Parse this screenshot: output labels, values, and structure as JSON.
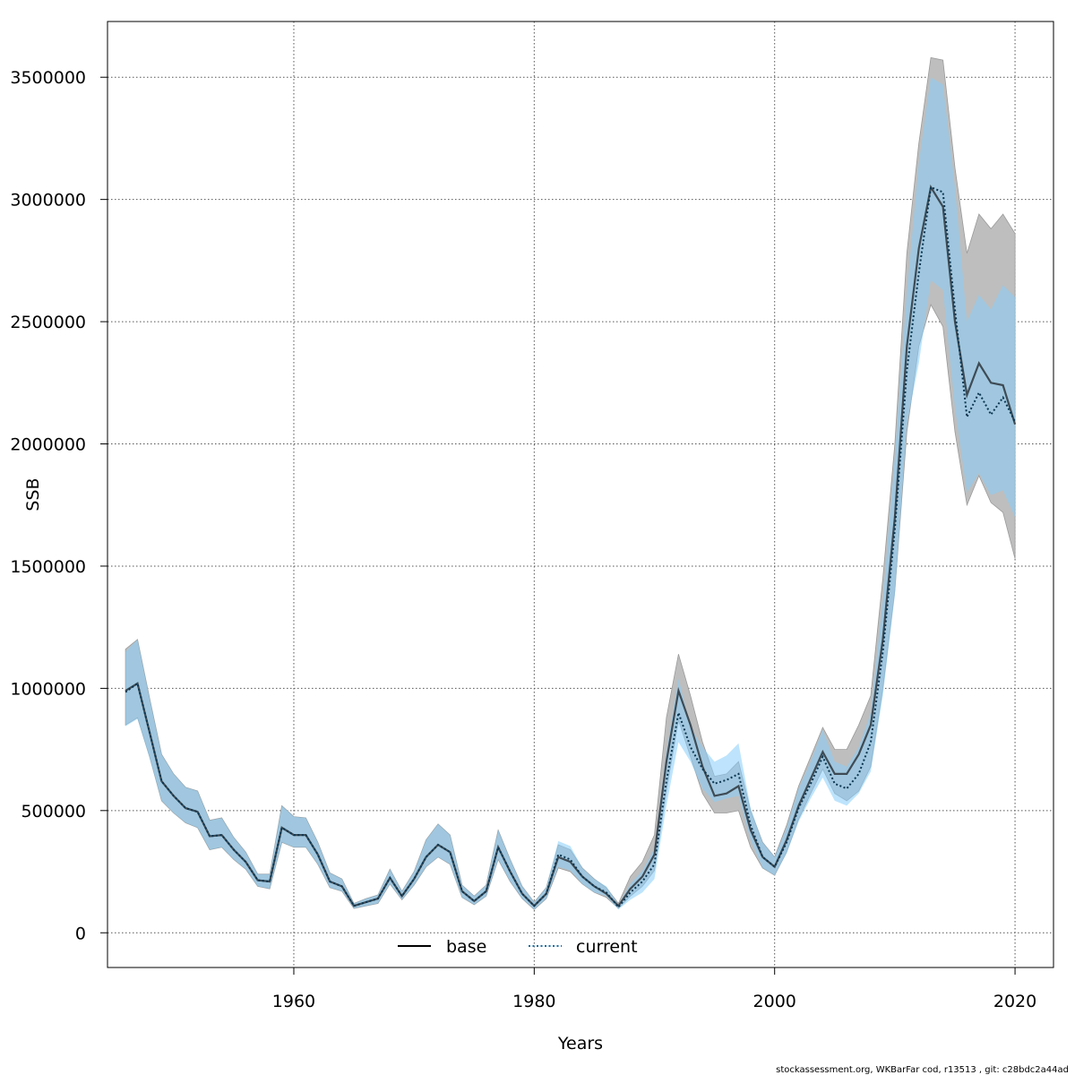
{
  "chart_data": {
    "type": "line",
    "title": "",
    "xlabel": "Years",
    "ylabel": "SSB",
    "xlim": [
      1944.5,
      2023.2
    ],
    "ylim": [
      -142000,
      3728000
    ],
    "grid": true,
    "legend_position": "bottom-center",
    "x_ticks": [
      1960,
      1980,
      2000,
      2020
    ],
    "y_ticks": [
      0,
      500000,
      1000000,
      1500000,
      2000000,
      2500000,
      3000000,
      3500000
    ],
    "colors": {
      "base_band": "#bebebe",
      "current_band": "#87cefa",
      "base_line": "#000000",
      "current_line": "#1f6f9f"
    },
    "x": [
      1946,
      1947,
      1948,
      1949,
      1950,
      1951,
      1952,
      1953,
      1954,
      1955,
      1956,
      1957,
      1958,
      1959,
      1960,
      1961,
      1962,
      1963,
      1964,
      1965,
      1966,
      1967,
      1968,
      1969,
      1970,
      1971,
      1972,
      1973,
      1974,
      1975,
      1976,
      1977,
      1978,
      1979,
      1980,
      1981,
      1982,
      1983,
      1984,
      1985,
      1986,
      1987,
      1988,
      1989,
      1990,
      1991,
      1992,
      1993,
      1994,
      1995,
      1996,
      1997,
      1998,
      1999,
      2000,
      2001,
      2002,
      2003,
      2004,
      2005,
      2006,
      2007,
      2008,
      2009,
      2010,
      2011,
      2012,
      2013,
      2014,
      2015,
      2016,
      2017,
      2018,
      2019,
      2020
    ],
    "series": [
      {
        "name": "base",
        "values": [
          990000,
          1020000,
          820000,
          620000,
          560000,
          510000,
          495000,
          395000,
          400000,
          340000,
          290000,
          215000,
          210000,
          430000,
          400000,
          400000,
          320000,
          210000,
          190000,
          110000,
          125000,
          140000,
          225000,
          150000,
          220000,
          310000,
          360000,
          330000,
          170000,
          130000,
          170000,
          350000,
          250000,
          160000,
          110000,
          160000,
          310000,
          290000,
          230000,
          190000,
          160000,
          110000,
          180000,
          230000,
          320000,
          700000,
          990000,
          850000,
          680000,
          560000,
          570000,
          600000,
          420000,
          310000,
          270000,
          380000,
          520000,
          630000,
          740000,
          650000,
          650000,
          730000,
          850000,
          1200000,
          1700000,
          2400000,
          2800000,
          3050000,
          2970000,
          2500000,
          2200000,
          2330000,
          2250000,
          2240000,
          2080000
        ],
        "lower": [
          850000,
          880000,
          720000,
          540000,
          490000,
          450000,
          430000,
          340000,
          350000,
          300000,
          260000,
          190000,
          180000,
          370000,
          350000,
          350000,
          280000,
          185000,
          170000,
          100000,
          110000,
          120000,
          200000,
          135000,
          195000,
          270000,
          310000,
          280000,
          145000,
          115000,
          150000,
          300000,
          210000,
          140000,
          95000,
          140000,
          265000,
          250000,
          200000,
          165000,
          145000,
          100000,
          150000,
          190000,
          255000,
          580000,
          870000,
          720000,
          570000,
          490000,
          490000,
          500000,
          350000,
          265000,
          235000,
          330000,
          465000,
          570000,
          670000,
          570000,
          540000,
          580000,
          680000,
          1000000,
          1400000,
          2050000,
          2400000,
          2570000,
          2480000,
          2050000,
          1750000,
          1870000,
          1760000,
          1720000,
          1530000
        ],
        "upper": [
          1160000,
          1200000,
          960000,
          730000,
          650000,
          595000,
          580000,
          460000,
          470000,
          390000,
          330000,
          240000,
          240000,
          520000,
          475000,
          470000,
          370000,
          245000,
          220000,
          120000,
          140000,
          155000,
          260000,
          170000,
          250000,
          380000,
          445000,
          400000,
          195000,
          150000,
          195000,
          420000,
          300000,
          190000,
          125000,
          185000,
          360000,
          340000,
          265000,
          220000,
          185000,
          120000,
          230000,
          290000,
          400000,
          880000,
          1140000,
          970000,
          780000,
          640000,
          650000,
          700000,
          500000,
          370000,
          310000,
          440000,
          600000,
          720000,
          840000,
          750000,
          750000,
          850000,
          970000,
          1450000,
          2000000,
          2780000,
          3230000,
          3580000,
          3570000,
          3130000,
          2780000,
          2940000,
          2880000,
          2940000,
          2860000
        ]
      },
      {
        "name": "current",
        "values": [
          985000,
          1020000,
          820000,
          620000,
          560000,
          510000,
          495000,
          395000,
          400000,
          340000,
          290000,
          215000,
          210000,
          430000,
          400000,
          400000,
          320000,
          210000,
          190000,
          110000,
          125000,
          140000,
          225000,
          150000,
          220000,
          310000,
          360000,
          330000,
          170000,
          130000,
          170000,
          350000,
          250000,
          160000,
          110000,
          160000,
          320000,
          300000,
          230000,
          190000,
          165000,
          105000,
          165000,
          210000,
          280000,
          620000,
          900000,
          760000,
          670000,
          610000,
          625000,
          650000,
          440000,
          310000,
          270000,
          370000,
          510000,
          610000,
          720000,
          610000,
          590000,
          650000,
          780000,
          1150000,
          1650000,
          2300000,
          2700000,
          3050000,
          3030000,
          2550000,
          2110000,
          2210000,
          2120000,
          2190000,
          2090000
        ],
        "lower": [
          845000,
          875000,
          715000,
          540000,
          490000,
          450000,
          430000,
          340000,
          350000,
          300000,
          260000,
          190000,
          180000,
          370000,
          350000,
          350000,
          280000,
          185000,
          170000,
          100000,
          110000,
          120000,
          200000,
          135000,
          195000,
          270000,
          310000,
          280000,
          145000,
          115000,
          150000,
          300000,
          210000,
          140000,
          95000,
          140000,
          270000,
          255000,
          200000,
          165000,
          150000,
          95000,
          135000,
          165000,
          220000,
          520000,
          780000,
          700000,
          590000,
          535000,
          550000,
          560000,
          380000,
          265000,
          235000,
          325000,
          455000,
          550000,
          635000,
          540000,
          520000,
          570000,
          660000,
          970000,
          1380000,
          2080000,
          2330000,
          2670000,
          2630000,
          2150000,
          1800000,
          1880000,
          1790000,
          1810000,
          1700000
        ],
        "upper": [
          1150000,
          1200000,
          960000,
          730000,
          650000,
          595000,
          580000,
          460000,
          470000,
          390000,
          330000,
          240000,
          240000,
          520000,
          475000,
          470000,
          370000,
          245000,
          220000,
          120000,
          140000,
          155000,
          260000,
          170000,
          250000,
          380000,
          445000,
          400000,
          195000,
          150000,
          195000,
          420000,
          300000,
          190000,
          125000,
          185000,
          375000,
          355000,
          265000,
          220000,
          190000,
          115000,
          200000,
          255000,
          345000,
          740000,
          1040000,
          840000,
          760000,
          700000,
          725000,
          775000,
          510000,
          370000,
          310000,
          430000,
          590000,
          700000,
          830000,
          700000,
          680000,
          760000,
          900000,
          1360000,
          1950000,
          2620000,
          3150000,
          3500000,
          3470000,
          3050000,
          2500000,
          2610000,
          2550000,
          2650000,
          2600000
        ]
      }
    ]
  },
  "legend": {
    "items": [
      {
        "label": "base"
      },
      {
        "label": "current"
      }
    ]
  },
  "footer": {
    "text": "stockassessment.org, WKBarFar  cod, r13513 , git: c28bdc2a44ad"
  }
}
